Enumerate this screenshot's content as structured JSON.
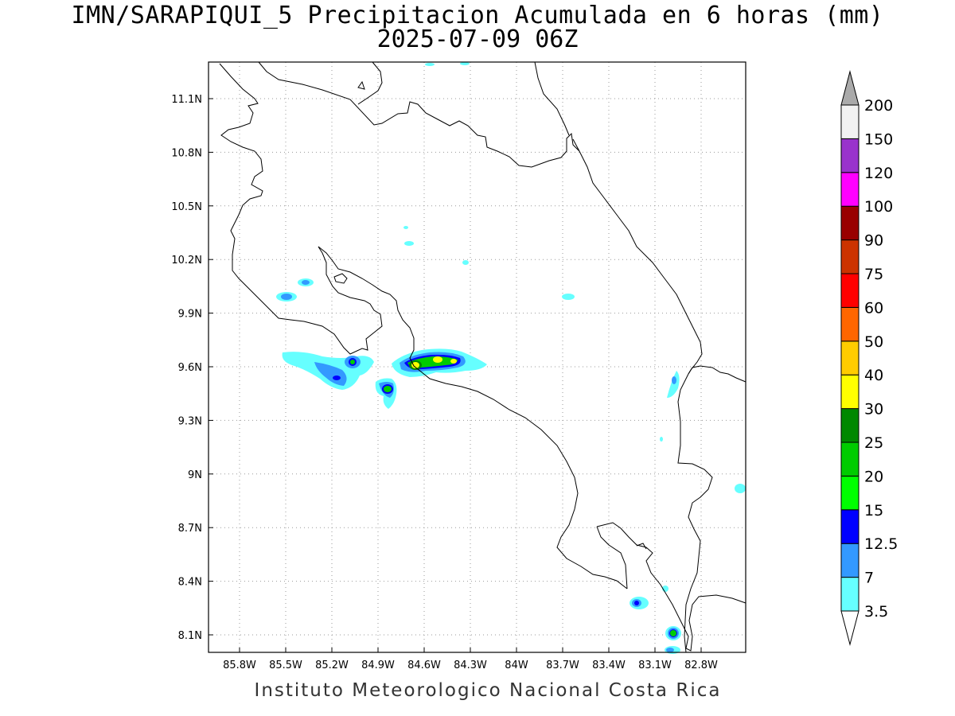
{
  "title": "IMN/SARAPIQUI_5 Precipitacion Acumulada en 6 horas (mm)",
  "subtitle": "2025-07-09 06Z",
  "credit": "Instituto Meteorologico Nacional Costa Rica",
  "map": {
    "lon_range": [
      -86.0,
      -82.6
    ],
    "lat_range": [
      8.0,
      11.3
    ],
    "x_ticks": [
      "85.8W",
      "85.5W",
      "85.2W",
      "84.9W",
      "84.6W",
      "84.3W",
      "84W",
      "83.7W",
      "83.4W",
      "83.1W",
      "82.8W"
    ],
    "y_ticks": [
      "11.1N",
      "10.8N",
      "10.5N",
      "10.2N",
      "9.9N",
      "9.6N",
      "9.3N",
      "9N",
      "8.7N",
      "8.4N",
      "8.1N"
    ],
    "grid": "dotted"
  },
  "colorbar": {
    "labels": [
      "3.5",
      "7",
      "12.5",
      "15",
      "20",
      "25",
      "30",
      "40",
      "50",
      "60",
      "75",
      "90",
      "100",
      "120",
      "150",
      "200"
    ],
    "colors": [
      "#66ffff",
      "#3399ff",
      "#0000ff",
      "#00ff00",
      "#00cc00",
      "#008800",
      "#ffff00",
      "#ffcc00",
      "#ff6600",
      "#ff0000",
      "#cc3300",
      "#990000",
      "#ff00ff",
      "#9933cc",
      "#f2f2f2",
      "#aaaaaa"
    ]
  }
}
